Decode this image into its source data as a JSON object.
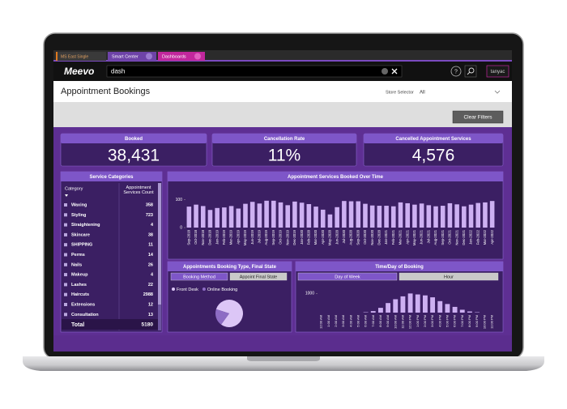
{
  "tabs": [
    "MS East Single",
    "Smart Center",
    "Dashboards"
  ],
  "header": {
    "logo": "Meevo",
    "search": "dash",
    "user": "tanyac"
  },
  "page": {
    "title": "Appointment Bookings",
    "store_selector_label": "Store Selector",
    "store_selector_value": "All",
    "clear_filters": "Clear Filters"
  },
  "kpis": [
    {
      "label": "Booked",
      "value": "38,431"
    },
    {
      "label": "Cancellation Rate",
      "value": "11%"
    },
    {
      "label": "Cancelled Appointment Services",
      "value": "4,576"
    }
  ],
  "service_categories": {
    "title": "Service Categories",
    "columns": [
      "Category",
      "Appointment Services Count"
    ],
    "rows": [
      [
        "Waxing",
        358
      ],
      [
        "Styling",
        723
      ],
      [
        "Straightening",
        4
      ],
      [
        "Skincare",
        38
      ],
      [
        "SHIPPING",
        11
      ],
      [
        "Perms",
        14
      ],
      [
        "Nails",
        26
      ],
      [
        "Makeup",
        4
      ],
      [
        "Lashes",
        22
      ],
      [
        "Haircuts",
        2988
      ],
      [
        "Extensions",
        12
      ],
      [
        "Consultation",
        13
      ]
    ],
    "total": [
      "Total",
      5180
    ]
  },
  "booking_tabs": [
    "Booking Method",
    "Appoint Final State"
  ],
  "time_tabs": [
    "Day of Week",
    "Hour"
  ],
  "chart_data": [
    {
      "type": "bar",
      "title": "Appointment Services Booked Over Time",
      "categories": [
        "Sep-2018",
        "Oct-2018",
        "Nov-2018",
        "Dec-2018",
        "Jan-2019",
        "Feb-2019",
        "Mar-2019",
        "Apr-2019",
        "May-2019",
        "Jun-2019",
        "Jul-2019",
        "Aug-2019",
        "Sep-2019",
        "Oct-2019",
        "Nov-2019",
        "Dec-2019",
        "Jan-2020",
        "Feb-2020",
        "Mar-2020",
        "Apr-2020",
        "May-2020",
        "Jun-2020",
        "Jul-2020",
        "Aug-2020",
        "Sep-2020",
        "Oct-2020",
        "Nov-2020",
        "Dec-2020",
        "Jan-2021",
        "Feb-2021",
        "Mar-2021",
        "Apr-2021",
        "May-2021",
        "Jun-2021",
        "Jul-2021",
        "Aug-2021",
        "Sep-2021",
        "Oct-2021",
        "Nov-2021",
        "Dec-2021",
        "Jan-2022",
        "Feb-2022",
        "Mar-2022",
        "Apr-2022"
      ],
      "values": [
        75,
        82,
        77,
        63,
        70,
        72,
        77,
        68,
        85,
        92,
        86,
        96,
        96,
        90,
        80,
        93,
        89,
        84,
        75,
        64,
        47,
        73,
        95,
        94,
        94,
        85,
        79,
        78,
        78,
        76,
        90,
        87,
        82,
        86,
        80,
        76,
        78,
        87,
        83,
        76,
        82,
        88,
        90,
        95
      ],
      "color": "#cdb0f2",
      "ylim": [
        0,
        110
      ],
      "yticks": [
        0,
        100
      ]
    },
    {
      "type": "pie",
      "title": "Appointments Booking Type, Final State",
      "categories": [
        "Front Desk",
        "Online Booking"
      ],
      "values": [
        80,
        20
      ],
      "colors": [
        "#dcc6f6",
        "#8d6cc4"
      ]
    },
    {
      "type": "bar",
      "title": "Time/Day of Booking",
      "categories": [
        "12:00 AM",
        "1:00 AM",
        "2:00 AM",
        "3:00 AM",
        "4:00 AM",
        "5:00 AM",
        "6:00 AM",
        "7:00 AM",
        "8:00 AM",
        "9:00 AM",
        "10:00 AM",
        "11:00 AM",
        "12:00 PM",
        "1:00 PM",
        "2:00 PM",
        "3:00 PM",
        "4:00 PM",
        "5:00 PM",
        "6:00 PM",
        "7:00 PM",
        "8:00 PM",
        "9:00 PM",
        "10:00 PM",
        "11:00 PM"
      ],
      "values": [
        0,
        0,
        0,
        0,
        0,
        0,
        20,
        80,
        250,
        500,
        700,
        850,
        1000,
        950,
        900,
        800,
        600,
        450,
        300,
        150,
        60,
        20,
        0,
        0
      ],
      "color": "#cdb0f2",
      "ylim": [
        0,
        1100
      ],
      "yticks": [
        1000
      ]
    }
  ]
}
